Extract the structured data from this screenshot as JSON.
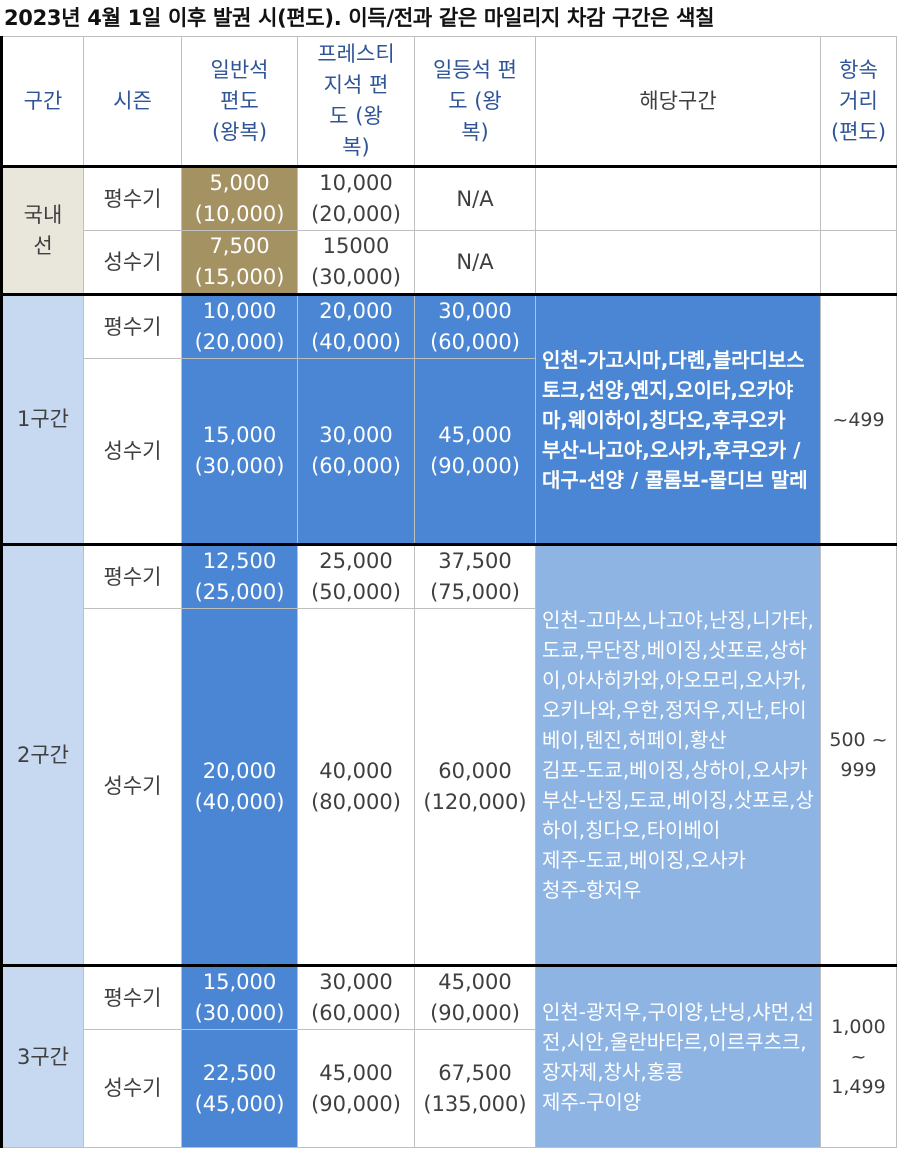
{
  "title": "2023년 4월 1일 이후 발권 시(편도). 이득/전과 같은 마일리지 차감 구간은 색칠",
  "headers": {
    "section": "구간",
    "season": "시즌",
    "economy": "일반석\n편도\n(왕복)",
    "prestige": "프레스티\n지석 편\n도 (왕\n복)",
    "first": "일등석 편\n도 (왕\n복)",
    "routes": "해당구간",
    "distance": "항속\n거리\n(편도)"
  },
  "rows": {
    "domestic": {
      "label": "국내\n선",
      "off": {
        "season": "평수기",
        "economy": "5,000\n(10,000)",
        "prestige": "10,000\n(20,000)",
        "first": "N/A"
      },
      "peak": {
        "season": "성수기",
        "economy": "7,500\n(15,000)",
        "prestige": "15000\n(30,000)",
        "first": "N/A"
      }
    },
    "zone1": {
      "label": "1구간",
      "off": {
        "season": "평수기",
        "economy": "10,000\n(20,000)",
        "prestige": "20,000\n(40,000)",
        "first": "30,000\n(60,000)"
      },
      "peak": {
        "season": "성수기",
        "economy": "15,000\n(30,000)",
        "prestige": "30,000\n(60,000)",
        "first": "45,000\n(90,000)"
      },
      "routes": "인천-가고시마,다롄,블라디보스토크,선양,옌지,오이타,오카야마,웨이하이,칭다오,후쿠오카\n부산-나고야,오사카,후쿠오카 / 대구-선양 / 콜롬보-몰디브 말레",
      "distance": "~499"
    },
    "zone2": {
      "label": "2구간",
      "off": {
        "season": "평수기",
        "economy": "12,500\n(25,000)",
        "prestige": "25,000\n(50,000)",
        "first": "37,500\n(75,000)"
      },
      "peak": {
        "season": "성수기",
        "economy": "20,000\n(40,000)",
        "prestige": "40,000\n(80,000)",
        "first": "60,000\n(120,000)"
      },
      "routes": "인천-고마쓰,나고야,난징,니가타,도쿄,무단장,베이징,삿포로,상하이,아사히카와,아오모리,오사카,오키나와,우한,정저우,지난,타이베이,톈진,허페이,황산\n김포-도쿄,베이징,상하이,오사카\n부산-난징,도쿄,베이징,삿포로,상하이,칭다오,타이베이\n제주-도쿄,베이징,오사카\n청주-항저우",
      "distance": "500 ~\n999"
    },
    "zone3": {
      "label": "3구간",
      "off": {
        "season": "평수기",
        "economy": "15,000\n(30,000)",
        "prestige": "30,000\n(60,000)",
        "first": "45,000\n(90,000)"
      },
      "peak": {
        "season": "성수기",
        "economy": "22,500\n(45,000)",
        "prestige": "45,000\n(90,000)",
        "first": "67,500\n(135,000)"
      },
      "routes": "인천-광저우,구이양,난닝,샤먼,선전,시안,울란바타르,이르쿠츠크,장자제,창사,홍콩\n제주-구이양",
      "distance": "1,000\n~\n1,499"
    }
  },
  "colors": {
    "gold": "#a59263",
    "blue": "#4a86d4",
    "light_blue": "#8eb4e3",
    "zone_label": "#c6d9f0",
    "domestic_label": "#e9e6dc",
    "header_text": "#2f5597"
  }
}
